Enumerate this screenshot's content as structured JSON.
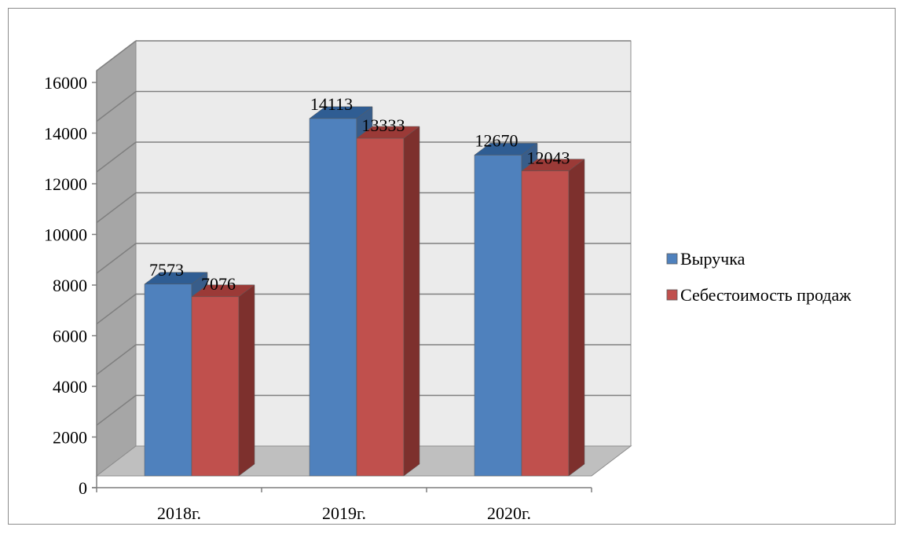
{
  "chart_data": {
    "type": "bar",
    "title": "",
    "xlabel": "",
    "ylabel": "",
    "categories": [
      "2018г.",
      "2019г.",
      "2020г."
    ],
    "series": [
      {
        "name": "Выручка",
        "values": [
          7573,
          14113,
          12670
        ],
        "color": "#4f81bd",
        "top_color": "#2f5d93",
        "side_color": "#385d8a"
      },
      {
        "name": "Себестоимость продаж",
        "values": [
          7076,
          13333,
          12043
        ],
        "color": "#c0504d",
        "top_color": "#9b3a37",
        "side_color": "#7d302d"
      }
    ],
    "ylim": [
      0,
      16000
    ],
    "yticks": [
      0,
      2000,
      4000,
      6000,
      8000,
      10000,
      12000,
      14000,
      16000
    ],
    "grid": true,
    "legend_position": "right",
    "data_labels": true,
    "style": "3d-clustered-column",
    "wall_color": "#ebebeb",
    "floor_color": "#bfbfbf",
    "side_wall_color": "#a6a6a6"
  }
}
